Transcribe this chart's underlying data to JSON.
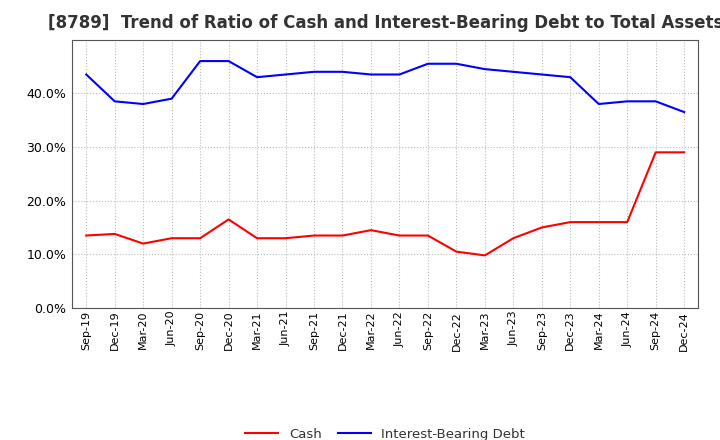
{
  "title": "[8789]  Trend of Ratio of Cash and Interest-Bearing Debt to Total Assets",
  "x_labels": [
    "Sep-19",
    "Dec-19",
    "Mar-20",
    "Jun-20",
    "Sep-20",
    "Dec-20",
    "Mar-21",
    "Jun-21",
    "Sep-21",
    "Dec-21",
    "Mar-22",
    "Jun-22",
    "Sep-22",
    "Dec-22",
    "Mar-23",
    "Jun-23",
    "Sep-23",
    "Dec-23",
    "Mar-24",
    "Jun-24",
    "Sep-24",
    "Dec-24"
  ],
  "cash": [
    13.5,
    13.8,
    12.0,
    13.0,
    13.0,
    16.5,
    13.0,
    13.0,
    13.5,
    13.5,
    14.5,
    13.5,
    13.5,
    10.5,
    9.8,
    13.0,
    15.0,
    16.0,
    16.0,
    16.0,
    29.0,
    29.0
  ],
  "interest_bearing_debt": [
    43.5,
    38.5,
    38.0,
    39.0,
    46.0,
    46.0,
    43.0,
    43.5,
    44.0,
    44.0,
    43.5,
    43.5,
    45.5,
    45.5,
    44.5,
    44.0,
    43.5,
    43.0,
    38.0,
    38.5,
    38.5,
    36.5
  ],
  "cash_color": "#ff0000",
  "ibd_color": "#0000ff",
  "ylim": [
    0,
    50
  ],
  "yticks": [
    0,
    10,
    20,
    30,
    40
  ],
  "background_color": "#ffffff",
  "grid_color": "#aaaaaa",
  "title_fontsize": 12,
  "title_color": "#333333",
  "tick_fontsize": 8,
  "legend_labels": [
    "Cash",
    "Interest-Bearing Debt"
  ]
}
